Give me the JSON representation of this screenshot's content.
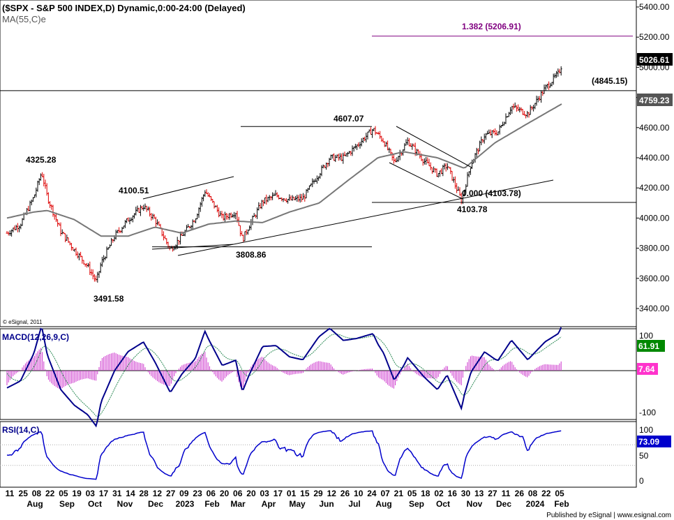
{
  "header": {
    "title": "($SPX - S&P 500 INDEX,D) Dynamic,0:00-24:00 (Delayed)",
    "ma_label": "MA(55,C)e",
    "copyright": "© eSignal, 2011"
  },
  "price_axis": {
    "min": 3250,
    "max": 5500,
    "ticks": [
      "5400.00",
      "5200.00",
      "5000.00",
      "4800.00",
      "4600.00",
      "4400.00",
      "4200.00",
      "4000.00",
      "3800.00",
      "3600.00",
      "3400.00"
    ],
    "last_value": "5026.61",
    "ma_value": "4759.23"
  },
  "annotations": {
    "fib_level": "1.382 (5206.91)",
    "hline_level": "(4845.15)",
    "fib_zero": "0.000 (4103.78)",
    "pivots": [
      {
        "label": "4325.28",
        "price": 4325.28
      },
      {
        "label": "3491.58",
        "price": 3491.58
      },
      {
        "label": "4100.51",
        "price": 4100.51
      },
      {
        "label": "3808.86",
        "price": 3808.86
      },
      {
        "label": "4607.07",
        "price": 4607.07
      },
      {
        "label": "4103.78",
        "price": 4103.78
      }
    ]
  },
  "macd": {
    "label": "MACD(12,26,9,C)",
    "ticks": [
      "100",
      "-100"
    ],
    "value": "61.91",
    "hist_value": "7.64",
    "colors": {
      "macd": "#00008b",
      "signal": "#2e8b57",
      "hist": "#cc33cc",
      "value_bg": "#008800",
      "hist_bg": "#ff33cc"
    }
  },
  "rsi": {
    "label": "RSI(14,C)",
    "ticks": [
      "100",
      "50",
      "0"
    ],
    "value": "73.09",
    "colors": {
      "line": "#0000cc",
      "value_bg": "#0000cc"
    }
  },
  "time_axis": {
    "days": [
      "11",
      "25",
      "08",
      "22",
      "05",
      "19",
      "03",
      "17",
      "31",
      "14",
      "28",
      "12",
      "27",
      "09",
      "23",
      "06",
      "20",
      "06",
      "20",
      "03",
      "17",
      "01",
      "15",
      "29",
      "12",
      "26",
      "10",
      "24",
      "07",
      "21",
      "05",
      "18",
      "02",
      "16",
      "30",
      "13",
      "27",
      "11",
      "26",
      "08",
      "22",
      "05"
    ],
    "months": [
      "Aug",
      "Sep",
      "Oct",
      "Nov",
      "Dec",
      "2023",
      "Feb",
      "Mar",
      "Apr",
      "May",
      "Jun",
      "Jul",
      "Aug",
      "Sep",
      "Oct",
      "Nov",
      "Dec",
      "2024",
      "Feb"
    ]
  },
  "footer": "Published by eSignal | www.esignal.com",
  "chart_data": {
    "type": "line",
    "title": "($SPX - S&P 500 INDEX,D) Dynamic,0:00-24:00 (Delayed)",
    "series": [
      {
        "name": "$SPX",
        "points": [
          [
            "2022-07-11",
            3900
          ],
          [
            "2022-07-25",
            3960
          ],
          [
            "2022-08-08",
            4140
          ],
          [
            "2022-08-16",
            4305
          ],
          [
            "2022-08-22",
            4140
          ],
          [
            "2022-09-05",
            3910
          ],
          [
            "2022-09-19",
            3790
          ],
          [
            "2022-10-03",
            3680
          ],
          [
            "2022-10-12",
            3577
          ],
          [
            "2022-10-17",
            3700
          ],
          [
            "2022-10-31",
            3880
          ],
          [
            "2022-11-14",
            3990
          ],
          [
            "2022-11-30",
            4080
          ],
          [
            "2022-12-12",
            3990
          ],
          [
            "2022-12-28",
            3790
          ],
          [
            "2023-01-09",
            3880
          ],
          [
            "2023-01-23",
            4000
          ],
          [
            "2023-02-02",
            4180
          ],
          [
            "2023-02-20",
            4000
          ],
          [
            "2023-03-06",
            4040
          ],
          [
            "2023-03-13",
            3855
          ],
          [
            "2023-03-20",
            3950
          ],
          [
            "2023-04-03",
            4110
          ],
          [
            "2023-04-17",
            4150
          ],
          [
            "2023-05-01",
            4120
          ],
          [
            "2023-05-15",
            4130
          ],
          [
            "2023-05-29",
            4270
          ],
          [
            "2023-06-12",
            4400
          ],
          [
            "2023-06-26",
            4400
          ],
          [
            "2023-07-10",
            4480
          ],
          [
            "2023-07-27",
            4590
          ],
          [
            "2023-08-07",
            4510
          ],
          [
            "2023-08-18",
            4370
          ],
          [
            "2023-09-01",
            4510
          ],
          [
            "2023-09-18",
            4380
          ],
          [
            "2023-10-02",
            4290
          ],
          [
            "2023-10-12",
            4350
          ],
          [
            "2023-10-27",
            4117
          ],
          [
            "2023-11-06",
            4360
          ],
          [
            "2023-11-20",
            4550
          ],
          [
            "2023-12-04",
            4570
          ],
          [
            "2023-12-18",
            4740
          ],
          [
            "2024-01-04",
            4690
          ],
          [
            "2024-01-22",
            4860
          ],
          [
            "2024-02-05",
            4960
          ],
          [
            "2024-02-09",
            5026.61
          ]
        ]
      },
      {
        "name": "MA(55,C)e",
        "points": [
          [
            "2022-07-11",
            4000
          ],
          [
            "2022-08-08",
            4040
          ],
          [
            "2022-08-22",
            4050
          ],
          [
            "2022-09-19",
            3990
          ],
          [
            "2022-10-17",
            3880
          ],
          [
            "2022-11-14",
            3880
          ],
          [
            "2022-12-12",
            3940
          ],
          [
            "2023-01-09",
            3900
          ],
          [
            "2023-02-06",
            3960
          ],
          [
            "2023-03-06",
            3980
          ],
          [
            "2023-04-03",
            3970
          ],
          [
            "2023-05-01",
            4040
          ],
          [
            "2023-06-01",
            4100
          ],
          [
            "2023-07-01",
            4250
          ],
          [
            "2023-08-01",
            4400
          ],
          [
            "2023-08-28",
            4440
          ],
          [
            "2023-10-02",
            4400
          ],
          [
            "2023-10-30",
            4330
          ],
          [
            "2023-12-01",
            4500
          ],
          [
            "2024-01-02",
            4620
          ],
          [
            "2024-02-09",
            4759.23
          ]
        ]
      }
    ],
    "ylim": [
      3250,
      5500
    ],
    "annotations": [
      "1.382 (5206.91)",
      "(4845.15)",
      "0.000 (4103.78)",
      "4325.28",
      "3491.58",
      "4100.51",
      "3808.86",
      "4607.07",
      "4103.78"
    ]
  }
}
